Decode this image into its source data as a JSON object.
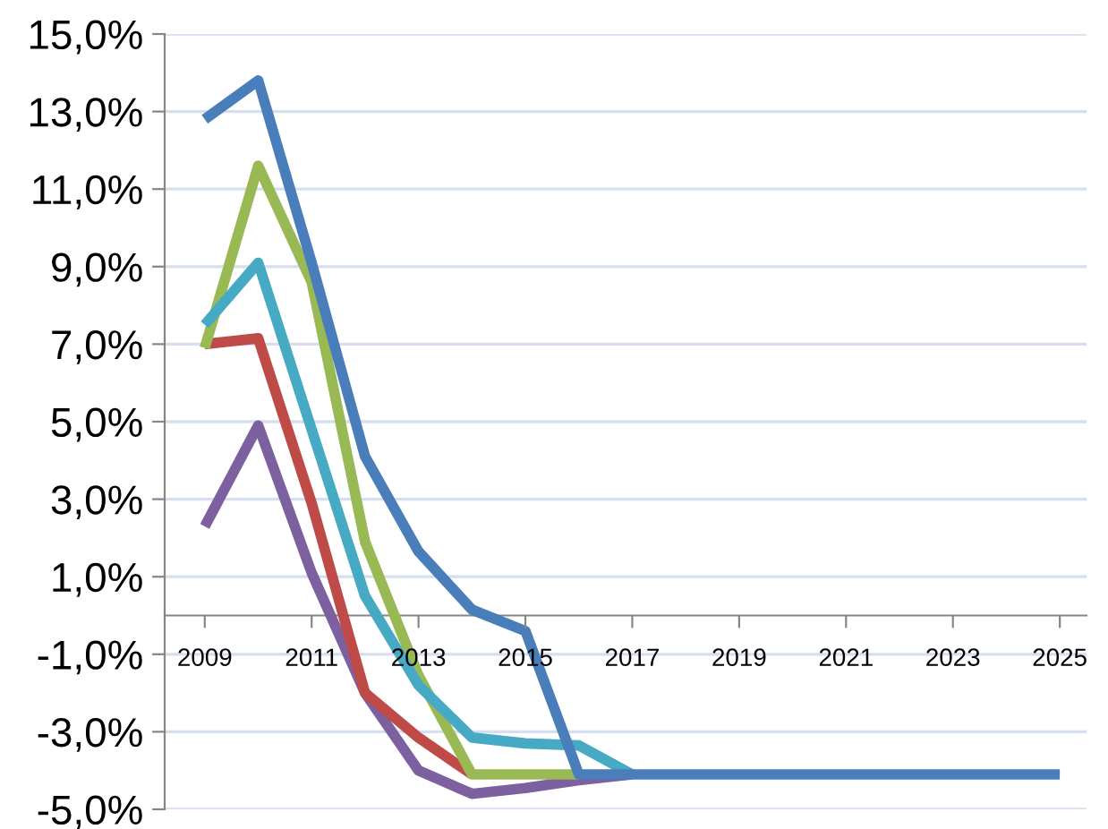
{
  "chart_data": {
    "type": "line",
    "categories": [
      "2009",
      null,
      "2011",
      null,
      "2013",
      null,
      "2015",
      null,
      "2017",
      null,
      "2019",
      null,
      "2021",
      null,
      "2023",
      null,
      "2025"
    ],
    "series": [
      {
        "color": "#7d60a0",
        "values": [
          2.3,
          4.9,
          1.1,
          -2.0,
          -4.0,
          -4.6,
          -4.45,
          -4.25,
          -4.1,
          null,
          null,
          null,
          null,
          null,
          null,
          null,
          null
        ]
      },
      {
        "color": "#be4b48",
        "values": [
          7.0,
          7.15,
          2.9,
          -2.0,
          -3.15,
          -4.1,
          null,
          null,
          null,
          null,
          null,
          null,
          null,
          null,
          null,
          null,
          null
        ]
      },
      {
        "color": "#98b954",
        "values": [
          6.9,
          11.6,
          8.6,
          1.9,
          -1.55,
          -4.1,
          -4.1,
          -4.1,
          null,
          null,
          null,
          null,
          null,
          null,
          null,
          null,
          null
        ]
      },
      {
        "color": "#46aac5",
        "values": [
          7.5,
          9.1,
          4.8,
          0.5,
          -1.8,
          -3.15,
          -3.3,
          -3.35,
          -4.1,
          null,
          null,
          null,
          null,
          null,
          null,
          null,
          null
        ]
      },
      {
        "color": "#4a7ebb",
        "values": [
          12.8,
          13.8,
          9.1,
          4.1,
          1.65,
          0.15,
          -0.4,
          -4.1,
          -4.1,
          -4.1,
          -4.1,
          -4.1,
          -4.1,
          -4.1,
          -4.1,
          -4.1,
          -4.1
        ]
      }
    ],
    "ylim": [
      -5,
      15
    ],
    "yticks": [
      {
        "value": -5,
        "label": "-5,0%"
      },
      {
        "value": -3,
        "label": "-3,0%"
      },
      {
        "value": -1,
        "label": "-1,0%"
      },
      {
        "value": 1,
        "label": "1,0%"
      },
      {
        "value": 3,
        "label": "3,0%"
      },
      {
        "value": 5,
        "label": "5,0%"
      },
      {
        "value": 7,
        "label": "7,0%"
      },
      {
        "value": 9,
        "label": "9,0%"
      },
      {
        "value": 11,
        "label": "11,0%"
      },
      {
        "value": 13,
        "label": "13,0%"
      },
      {
        "value": 15,
        "label": "15,0%"
      }
    ],
    "grid": "y",
    "legend": false,
    "marker": "none",
    "line_style": "solid"
  }
}
